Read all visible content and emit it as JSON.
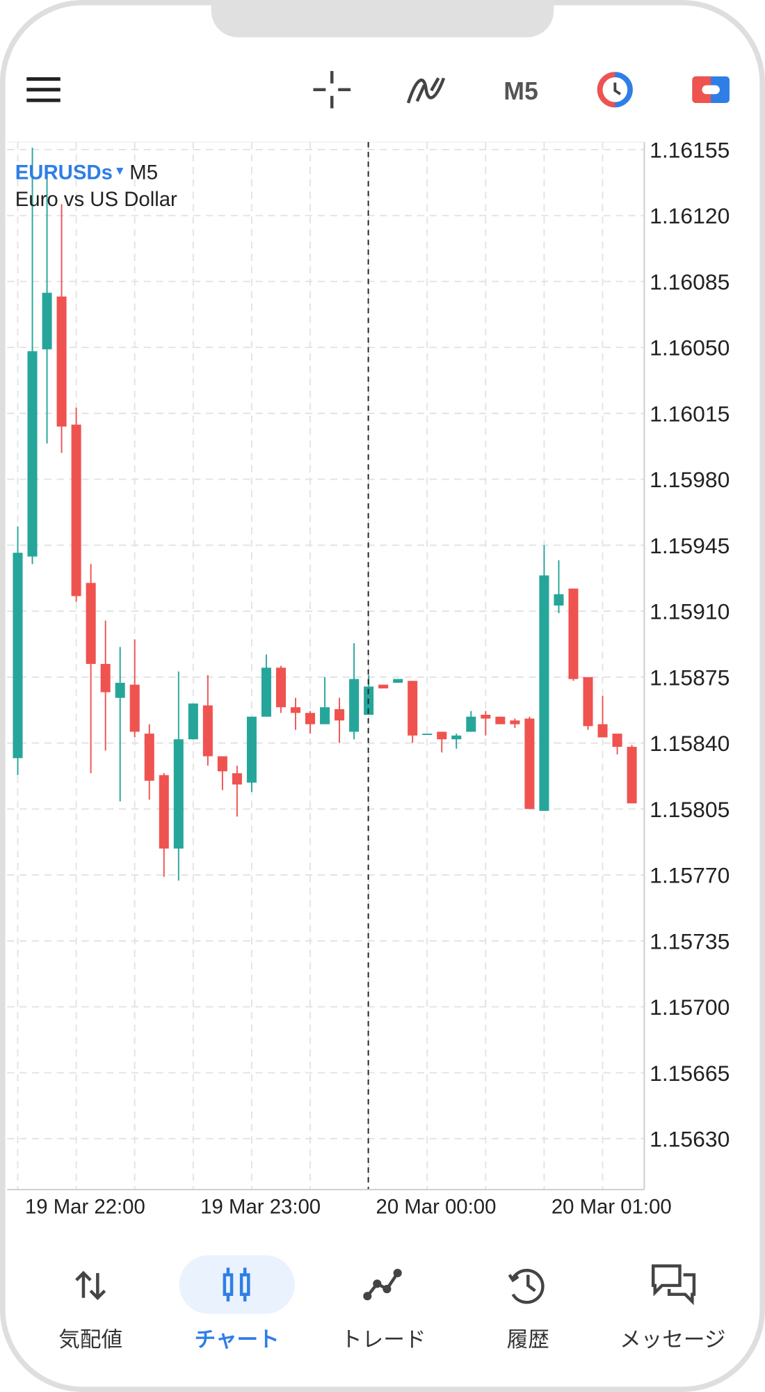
{
  "toolbar": {
    "timeframe": "M5"
  },
  "chart_data": {
    "type": "candlestick",
    "symbol": "EURUSDs",
    "timeframe": "M5",
    "description": "Euro vs US Dollar",
    "categories": [
      null,
      null,
      null,
      null,
      "19 Mar 22:00",
      null,
      null,
      null,
      null,
      null,
      null,
      null,
      null,
      null,
      null,
      null,
      "19 Mar 23:00",
      null,
      null,
      null,
      null,
      null,
      null,
      null,
      null,
      null,
      null,
      null,
      "20 Mar 00:00",
      null,
      null,
      null,
      null,
      null,
      null,
      null,
      null,
      null,
      null,
      null,
      "20 Mar 01:00",
      null,
      null
    ],
    "open": [
      1.15832,
      1.15939,
      1.16049,
      1.16077,
      1.16009,
      1.15925,
      1.15882,
      1.15864,
      1.15871,
      1.15845,
      1.15823,
      1.15784,
      1.15842,
      1.1586,
      1.15833,
      1.15824,
      1.15819,
      1.15854,
      1.1588,
      1.15859,
      1.15856,
      1.1585,
      1.15858,
      1.15846,
      1.15855,
      1.15871,
      1.15872,
      1.15873,
      1.15845,
      1.15846,
      1.15842,
      1.15846,
      1.15855,
      1.15854,
      1.15852,
      1.15853,
      1.15804,
      1.15913,
      1.15922,
      1.15875,
      1.1585,
      1.15845,
      1.15838
    ],
    "high": [
      1.15955,
      1.16156,
      1.1614,
      1.16126,
      1.16018,
      1.15935,
      1.15905,
      1.15891,
      1.15895,
      1.1585,
      1.15824,
      1.15878,
      1.15861,
      1.15876,
      1.15833,
      1.15828,
      1.15854,
      1.15887,
      1.15881,
      1.15864,
      1.15857,
      1.15875,
      1.15864,
      1.15893,
      1.15876,
      1.15871,
      1.15874,
      1.15873,
      1.15845,
      1.15846,
      1.15845,
      1.15857,
      1.15857,
      1.15854,
      1.15853,
      1.15854,
      1.15945,
      1.15937,
      1.15922,
      1.15875,
      1.15865,
      1.15845,
      1.15839
    ],
    "low": [
      1.15823,
      1.15935,
      1.15999,
      1.15994,
      1.15915,
      1.15824,
      1.15836,
      1.15809,
      1.15843,
      1.1581,
      1.15769,
      1.15767,
      1.15842,
      1.15828,
      1.15815,
      1.15801,
      1.15814,
      1.15854,
      1.15856,
      1.15847,
      1.15845,
      1.1585,
      1.1584,
      1.15842,
      1.15855,
      1.15869,
      1.15872,
      1.1584,
      1.15845,
      1.15835,
      1.15837,
      1.15846,
      1.15844,
      1.1585,
      1.15848,
      1.15805,
      1.15804,
      1.15909,
      1.15873,
      1.15847,
      1.15843,
      1.15834,
      1.15808
    ],
    "close": [
      1.15941,
      1.16048,
      1.16079,
      1.16008,
      1.15918,
      1.15882,
      1.15867,
      1.15872,
      1.15846,
      1.1582,
      1.15784,
      1.15842,
      1.15861,
      1.15833,
      1.15825,
      1.15818,
      1.15854,
      1.1588,
      1.15859,
      1.15856,
      1.1585,
      1.15859,
      1.15852,
      1.15874,
      1.1587,
      1.15869,
      1.15874,
      1.15844,
      1.15845,
      1.15842,
      1.15844,
      1.15854,
      1.15853,
      1.1585,
      1.1585,
      1.15805,
      1.15929,
      1.15919,
      1.15874,
      1.15849,
      1.15843,
      1.15838,
      1.15808
    ],
    "up_color": "#26a69a",
    "down_color": "#ef5350",
    "ylim": [
      1.15603,
      1.16159
    ],
    "yticks": [
      1.16155,
      {
        "value": 1.1612,
        "label": "1.16120"
      },
      1.16085,
      {
        "value": 1.1605,
        "label": "1.16050"
      },
      1.16015,
      {
        "value": 1.1598,
        "label": "1.15980"
      },
      1.15945,
      {
        "value": 1.1591,
        "label": "1.15910"
      },
      1.15875,
      {
        "value": 1.1584,
        "label": "1.15840"
      },
      1.15805,
      {
        "value": 1.1577,
        "label": "1.15770"
      },
      1.15735,
      {
        "value": 1.157,
        "label": "1.15700"
      },
      1.15665,
      {
        "value": 1.1563,
        "label": "1.15630"
      }
    ],
    "grid": true
  },
  "nav": {
    "items": [
      "気配値",
      "チャート",
      "トレード",
      "履歴",
      "メッセージ"
    ],
    "active": 1
  }
}
